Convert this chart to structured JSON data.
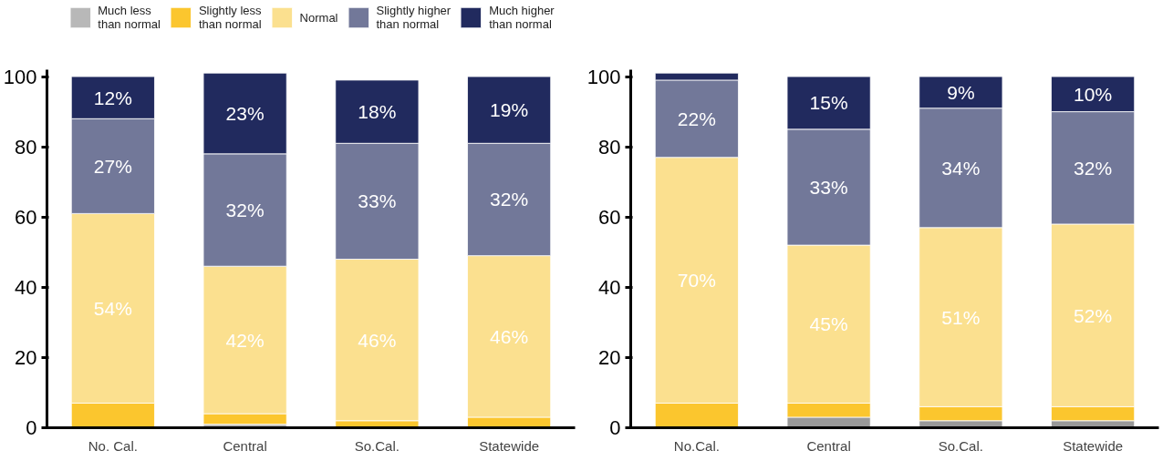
{
  "chart_data": [
    {
      "type": "bar",
      "stacked": true,
      "legend": "top",
      "categories": [
        "No. Cal.",
        "Central",
        "So.Cal.",
        "Statewide"
      ],
      "ylim": [
        0,
        102
      ],
      "yticks": [
        0,
        20,
        40,
        60,
        80,
        100
      ],
      "grid": false,
      "series": [
        {
          "name": "Much less\nthan normal",
          "color": "#b8b8b8",
          "values": [
            0,
            1,
            0,
            0
          ],
          "value_labels": [
            null,
            null,
            null,
            null
          ]
        },
        {
          "name": "Slightly less\nthan normal",
          "color": "#fbc62e",
          "values": [
            7,
            3,
            2,
            3
          ],
          "value_labels": [
            null,
            null,
            null,
            null
          ]
        },
        {
          "name": "Normal",
          "color": "#fbe08f",
          "values": [
            54,
            42,
            46,
            46
          ],
          "value_labels": [
            "54%",
            "42%",
            "46%",
            "46%"
          ]
        },
        {
          "name": "Slightly higher\nthan normal",
          "color": "#727899",
          "values": [
            27,
            32,
            33,
            32
          ],
          "value_labels": [
            "27%",
            "32%",
            "33%",
            "32%"
          ]
        },
        {
          "name": "Much higher\nthan normal",
          "color": "#212a5e",
          "values": [
            12,
            23,
            18,
            19
          ],
          "value_labels": [
            "12%",
            "23%",
            "18%",
            "19%"
          ]
        }
      ]
    },
    {
      "type": "bar",
      "stacked": true,
      "categories": [
        "No.Cal.",
        "Central",
        "So.Cal.",
        "Statewide"
      ],
      "ylim": [
        0,
        102
      ],
      "yticks": [
        0,
        20,
        40,
        60,
        80,
        100
      ],
      "grid": false,
      "series": [
        {
          "color": "#999999",
          "values": [
            0,
            3,
            2,
            2
          ],
          "value_labels": [
            null,
            null,
            null,
            null
          ]
        },
        {
          "color": "#fbc62e",
          "values": [
            7,
            4,
            4,
            4
          ],
          "value_labels": [
            null,
            null,
            null,
            null
          ]
        },
        {
          "color": "#fbe08f",
          "values": [
            70,
            45,
            51,
            52
          ],
          "value_labels": [
            "70%",
            "45%",
            "51%",
            "52%"
          ]
        },
        {
          "color": "#727899",
          "values": [
            22,
            33,
            34,
            32
          ],
          "value_labels": [
            "22%",
            "33%",
            "34%",
            "32%"
          ]
        },
        {
          "color": "#212a5e",
          "values": [
            2,
            15,
            9,
            10
          ],
          "value_labels": [
            null,
            "15%",
            "9%",
            "10%"
          ]
        }
      ]
    }
  ]
}
